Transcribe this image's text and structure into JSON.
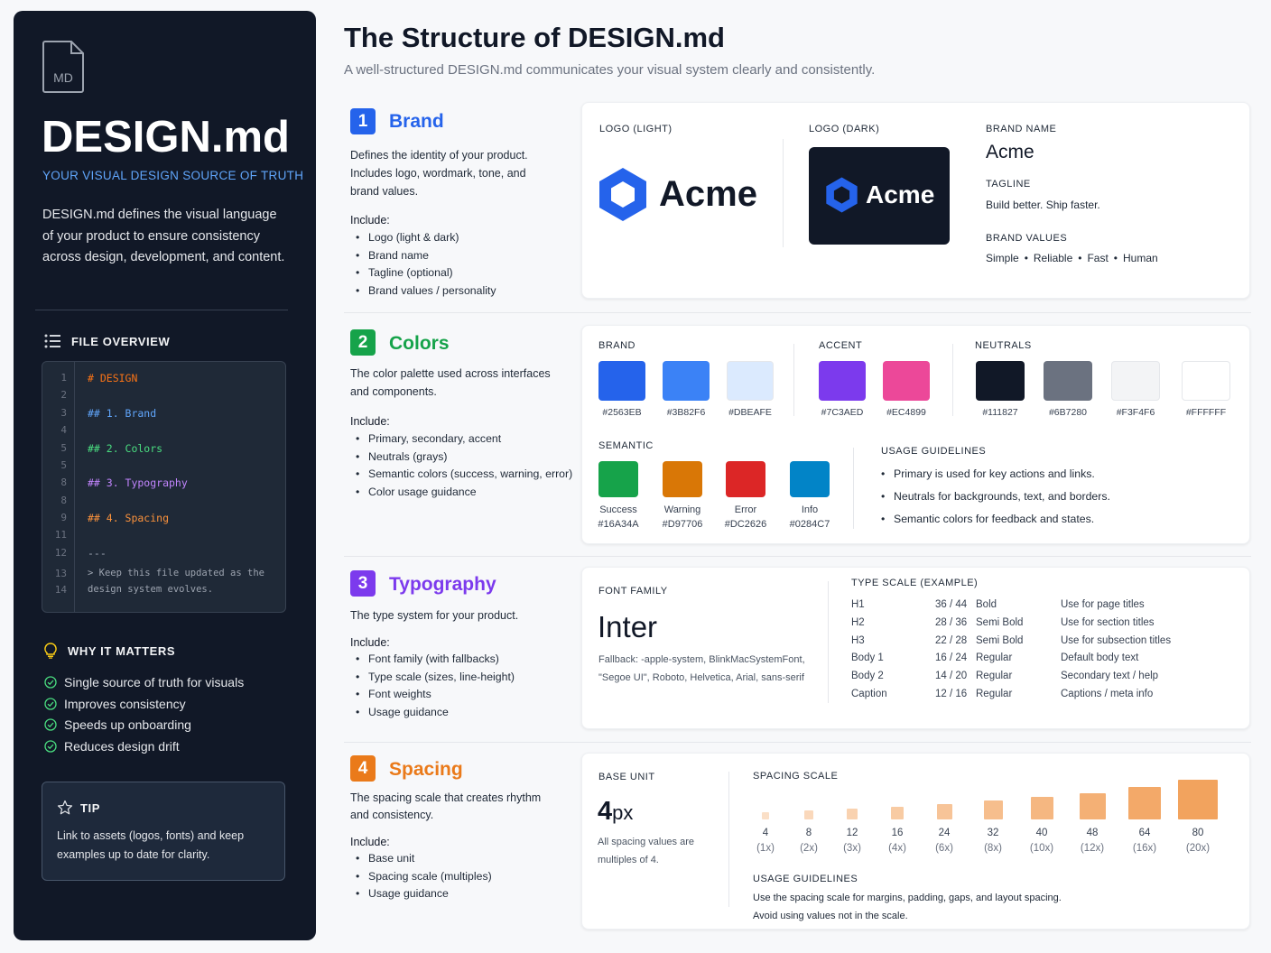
{
  "sidebar": {
    "md_icon_label": "MD",
    "title": "DESIGN.md",
    "subtitle": "YOUR VISUAL DESIGN SOURCE OF TRUTH",
    "description": "DESIGN.md defines the visual language of your product to ensure consistency across design, development, and content.",
    "file_overview": {
      "heading": "FILE OVERVIEW",
      "lines": [
        {
          "n": "1",
          "text": "# DESIGN",
          "color": "#F97316"
        },
        {
          "n": "2",
          "text": "",
          "color": "#E5E7EB"
        },
        {
          "n": "3",
          "text": "## 1. Brand",
          "color": "#60A5FA"
        },
        {
          "n": "4",
          "text": "",
          "color": "#E5E7EB"
        },
        {
          "n": "5",
          "text": "## 2. Colors",
          "color": "#4ADE80"
        },
        {
          "n": "5",
          "text": "",
          "color": "#E5E7EB"
        },
        {
          "n": "8",
          "text": "## 3. Typography",
          "color": "#C084FC"
        },
        {
          "n": "8",
          "text": "",
          "color": "#E5E7EB"
        },
        {
          "n": "9",
          "text": "## 4. Spacing",
          "color": "#FB923C"
        },
        {
          "n": "11",
          "text": "",
          "color": "#E5E7EB"
        },
        {
          "n": "12",
          "text": "---",
          "color": "#9CA3AF"
        },
        {
          "n": "13",
          "text": "> Keep this file updated as the",
          "color": "#9CA3AF"
        },
        {
          "n": "14",
          "text": "design system evolves.",
          "color": "#9CA3AF"
        }
      ]
    },
    "why": {
      "heading": "WHY IT MATTERS",
      "items": [
        "Single source of truth for visuals",
        "Improves consistency",
        "Speeds up onboarding",
        "Reduces design drift"
      ]
    },
    "tip": {
      "heading": "TIP",
      "text": "Link to assets (logos, fonts) and keep examples up to date for clarity."
    }
  },
  "header": {
    "title": "The Structure of DESIGN.md",
    "subtitle": "A well-structured DESIGN.md communicates your visual system clearly and consistently."
  },
  "sections": {
    "brand": {
      "num": "1",
      "title": "Brand",
      "color": "#2563EB",
      "desc": "Defines the identity of your product. Includes logo, wordmark, tone, and brand values.",
      "include_label": "Include:",
      "include": [
        "Logo (light & dark)",
        "Brand name",
        "Tagline (optional)",
        "Brand values / personality"
      ],
      "card": {
        "logo_light_label": "LOGO (LIGHT)",
        "logo_dark_label": "LOGO (DARK)",
        "logo_text": "Acme",
        "brand_name_label": "BRAND NAME",
        "brand_name": "Acme",
        "tagline_label": "TAGLINE",
        "tagline": "Build better. Ship faster.",
        "values_label": "BRAND VALUES",
        "values": [
          "Simple",
          "Reliable",
          "Fast",
          "Human"
        ]
      }
    },
    "colors": {
      "num": "2",
      "title": "Colors",
      "color": "#16A34A",
      "desc": "The color palette used across interfaces and components.",
      "include_label": "Include:",
      "include": [
        "Primary, secondary, accent",
        "Neutrals (grays)",
        "Semantic colors (success, warning, error)",
        "Color usage guidance"
      ],
      "card": {
        "brand_label": "BRAND",
        "brand": [
          {
            "hex": "#2563EB"
          },
          {
            "hex": "#3B82F6"
          },
          {
            "hex": "#DBEAFE"
          }
        ],
        "accent_label": "ACCENT",
        "accent": [
          {
            "hex": "#7C3AED"
          },
          {
            "hex": "#EC4899"
          }
        ],
        "neutrals_label": "NEUTRALS",
        "neutrals": [
          {
            "hex": "#111827"
          },
          {
            "hex": "#6B7280"
          },
          {
            "hex": "#F3F4F6"
          },
          {
            "hex": "#FFFFFF"
          }
        ],
        "semantic_label": "SEMANTIC",
        "semantic": [
          {
            "name": "Success",
            "hex": "#16A34A"
          },
          {
            "name": "Warning",
            "hex": "#D97706"
          },
          {
            "name": "Error",
            "hex": "#DC2626"
          },
          {
            "name": "Info",
            "hex": "#0284C7"
          }
        ],
        "usage_label": "USAGE GUIDELINES",
        "usage": [
          "Primary is used for key actions and links.",
          "Neutrals for backgrounds, text, and borders.",
          "Semantic colors for feedback and states."
        ]
      }
    },
    "typography": {
      "num": "3",
      "title": "Typography",
      "color": "#7C3AED",
      "desc": "The type system for your product.",
      "include_label": "Include:",
      "include": [
        "Font family (with fallbacks)",
        "Type scale (sizes, line-height)",
        "Font weights",
        "Usage guidance"
      ],
      "card": {
        "family_label": "FONT FAMILY",
        "family": "Inter",
        "fallback": "Fallback: -apple-system, BlinkMacSystemFont, \"Segoe UI\", Roboto, Helvetica, Arial, sans-serif",
        "scale_label": "TYPE SCALE (EXAMPLE)",
        "scale": [
          [
            "H1",
            "36 / 44",
            "Bold",
            "Use for page titles"
          ],
          [
            "H2",
            "28 / 36",
            "Semi Bold",
            "Use for section titles"
          ],
          [
            "H3",
            "22 / 28",
            "Semi Bold",
            "Use for subsection titles"
          ],
          [
            "Body 1",
            "16 / 24",
            "Regular",
            "Default body text"
          ],
          [
            "Body 2",
            "14 / 20",
            "Regular",
            "Secondary text / help"
          ],
          [
            "Caption",
            "12 / 16",
            "Regular",
            "Captions / meta info"
          ]
        ]
      }
    },
    "spacing": {
      "num": "4",
      "title": "Spacing",
      "color": "#EA7A1A",
      "desc": "The spacing scale that creates rhythm and consistency.",
      "include_label": "Include:",
      "include": [
        "Base unit",
        "Spacing scale (multiples)",
        "Usage guidance"
      ],
      "card": {
        "base_label": "BASE UNIT",
        "base_num": "4",
        "base_unit": "px",
        "base_note": "All spacing values are multiples of 4.",
        "scale_label": "SPACING SCALE",
        "scale": [
          {
            "v": "4",
            "m": "(1x)"
          },
          {
            "v": "8",
            "m": "(2x)"
          },
          {
            "v": "12",
            "m": "(3x)"
          },
          {
            "v": "16",
            "m": "(4x)"
          },
          {
            "v": "24",
            "m": "(6x)"
          },
          {
            "v": "32",
            "m": "(8x)"
          },
          {
            "v": "40",
            "m": "(10x)"
          },
          {
            "v": "48",
            "m": "(12x)"
          },
          {
            "v": "64",
            "m": "(16x)"
          },
          {
            "v": "80",
            "m": "(20x)"
          }
        ],
        "usage_label": "USAGE GUIDELINES",
        "usage": [
          "Use the spacing scale for margins, padding, gaps, and layout spacing.",
          "Avoid using values not in the scale."
        ]
      }
    }
  }
}
